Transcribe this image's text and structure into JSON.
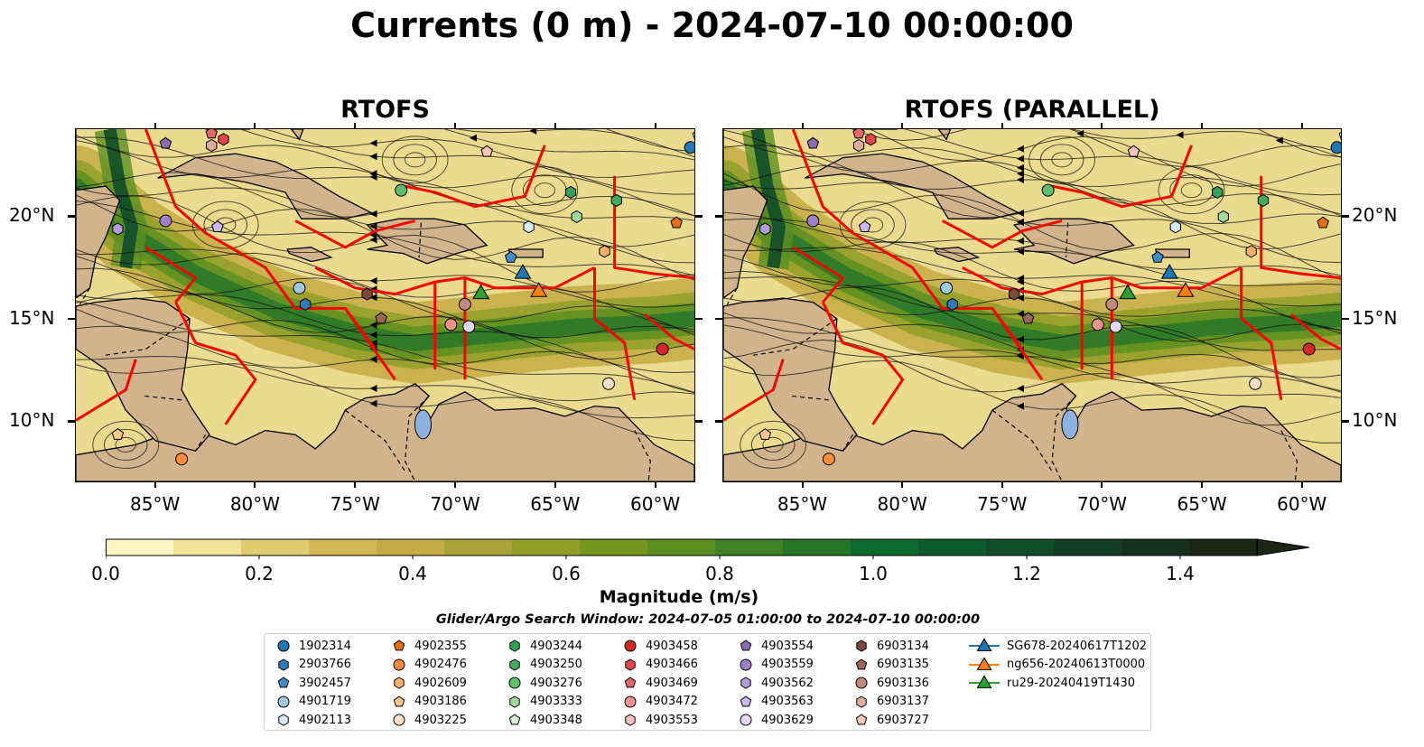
{
  "suptitle": "Currents (0 m) - 2024-07-10 00:00:00",
  "panels": {
    "left_title": "RTOFS",
    "right_title": "RTOFS (PARALLEL)"
  },
  "axes": {
    "lon_ticks": [
      "85°W",
      "80°W",
      "75°W",
      "70°W",
      "65°W",
      "60°W"
    ],
    "lon_values": [
      -85,
      -80,
      -75,
      -70,
      -65,
      -60
    ],
    "lat_ticks": [
      "20°N",
      "15°N",
      "10°N"
    ],
    "lat_values": [
      20,
      15,
      10
    ],
    "lon_range": [
      -89,
      -58
    ],
    "lat_range": [
      7,
      24.3
    ]
  },
  "colorbar": {
    "title": "Magnitude (m/s)",
    "tick_labels": [
      "0.0",
      "0.2",
      "0.4",
      "0.6",
      "0.8",
      "1.0",
      "1.2",
      "1.4"
    ],
    "tick_values": [
      0,
      0.2,
      0.4,
      0.6,
      0.8,
      1.0,
      1.2,
      1.4
    ],
    "range": [
      0,
      1.5
    ],
    "extend": "max",
    "colors": [
      "#fdf5c3",
      "#f1e39a",
      "#e2cc72",
      "#d3b855",
      "#c4ab44",
      "#a9a33a",
      "#8f9f27",
      "#75971f",
      "#5c8f20",
      "#3f8126",
      "#277529",
      "#0f6a2f",
      "#0c5b2d",
      "#0f4c29",
      "#133e23",
      "#16301d",
      "#1b2614"
    ]
  },
  "search_window": "Glider/Argo Search Window: 2024-07-05 01:00:00 to 2024-07-10 00:00:00",
  "legend": [
    {
      "label": "1902314",
      "marker": "circle",
      "color": "#1f77b4"
    },
    {
      "label": "2903766",
      "marker": "hexagon",
      "color": "#2f7bb5"
    },
    {
      "label": "3902457",
      "marker": "pentagon",
      "color": "#3f8ec9"
    },
    {
      "label": "4901719",
      "marker": "circle",
      "color": "#9ecae1"
    },
    {
      "label": "4902113",
      "marker": "hexagon",
      "color": "#d6eaf8"
    },
    {
      "label": "4902355",
      "marker": "pentagon",
      "color": "#e6700e"
    },
    {
      "label": "4902476",
      "marker": "circle",
      "color": "#fd8d3c"
    },
    {
      "label": "4902609",
      "marker": "hexagon",
      "color": "#fdae6b"
    },
    {
      "label": "4903186",
      "marker": "pentagon",
      "color": "#fdc790"
    },
    {
      "label": "4903225",
      "marker": "circle",
      "color": "#fee0c2"
    },
    {
      "label": "4903244",
      "marker": "hexagon",
      "color": "#31a354"
    },
    {
      "label": "4903250",
      "marker": "hexagon",
      "color": "#41ab5d"
    },
    {
      "label": "4903276",
      "marker": "circle",
      "color": "#5fbf6a"
    },
    {
      "label": "4903333",
      "marker": "hexagon",
      "color": "#a1d99b"
    },
    {
      "label": "4903348",
      "marker": "pentagon",
      "color": "#d4f2cf"
    },
    {
      "label": "4903458",
      "marker": "circle",
      "color": "#d62728"
    },
    {
      "label": "4903466",
      "marker": "hexagon",
      "color": "#e0474a"
    },
    {
      "label": "4903469",
      "marker": "pentagon",
      "color": "#e8676a"
    },
    {
      "label": "4903472",
      "marker": "circle",
      "color": "#f0938f"
    },
    {
      "label": "4903553",
      "marker": "hexagon",
      "color": "#fac3bf"
    },
    {
      "label": "4903554",
      "marker": "pentagon",
      "color": "#8c6bb1"
    },
    {
      "label": "4903559",
      "marker": "circle",
      "color": "#9e7fc8"
    },
    {
      "label": "4903562",
      "marker": "hexagon",
      "color": "#b39ddb"
    },
    {
      "label": "4903563",
      "marker": "pentagon",
      "color": "#cbb8ec"
    },
    {
      "label": "4903629",
      "marker": "circle",
      "color": "#e4d7f7"
    },
    {
      "label": "6903134",
      "marker": "hexagon",
      "color": "#7a4a3a"
    },
    {
      "label": "6903135",
      "marker": "pentagon",
      "color": "#9a6655"
    },
    {
      "label": "6903136",
      "marker": "circle",
      "color": "#c08a7a"
    },
    {
      "label": "6903137",
      "marker": "hexagon",
      "color": "#e0ad9c"
    },
    {
      "label": "6903727",
      "marker": "pentagon",
      "color": "#f7c6b8"
    },
    {
      "label": "SG678-20240617T1202",
      "marker": "triangle",
      "color": "#1f77b4"
    },
    {
      "label": "ng656-20240613T0000",
      "marker": "triangle",
      "color": "#ff7f0e"
    },
    {
      "label": "ru29-20240419T1430",
      "marker": "triangle",
      "color": "#2ca02c"
    }
  ]
}
